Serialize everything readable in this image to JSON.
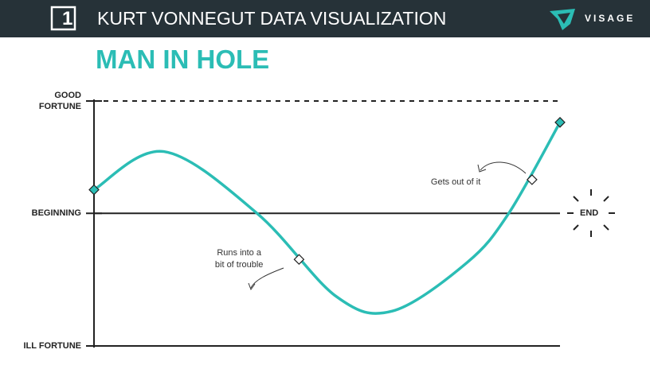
{
  "header": {
    "number": "1",
    "title": "KURT VONNEGUT DATA VISUALIZATION",
    "brand": "VISAGE"
  },
  "chart_data": {
    "type": "line",
    "title": "MAN IN HOLE",
    "x": [
      0,
      15,
      35,
      52,
      64,
      80,
      89,
      100
    ],
    "series": [
      {
        "color": "#2bbdb5",
        "values": [
          0.21,
          0.55,
          0,
          -0.74,
          -0.87,
          -0.44,
          0,
          0.81
        ]
      }
    ],
    "xlim": [
      0,
      100
    ],
    "ylim": [
      -1.18,
      1
    ],
    "yticks": [
      {
        "value": -1.18,
        "label": "ILL FORTUNE"
      },
      {
        "value": 0,
        "label": "BEGINNING"
      },
      {
        "value": 1,
        "label": "GOOD\nFORTUNE"
      }
    ],
    "grid": true,
    "end_label": "END",
    "annotations": [
      {
        "text": "Runs into a\nbit of trouble",
        "x": 44,
        "y": -0.41
      },
      {
        "text": "Gets out of it",
        "x": 94,
        "y": 0.3
      }
    ]
  }
}
